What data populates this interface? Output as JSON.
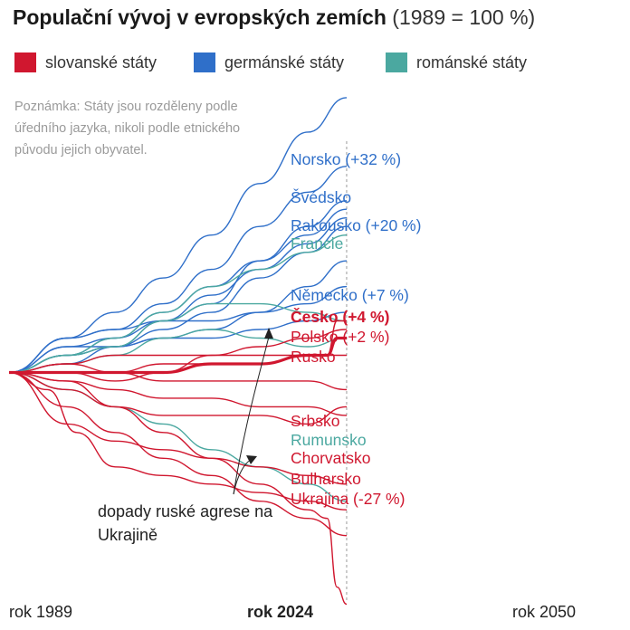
{
  "title": {
    "main": "Populační vývoj v evropských zemích",
    "sub": "(1989 = 100 %)"
  },
  "legend": [
    {
      "label": "slovanské státy",
      "color": "#d0172f"
    },
    {
      "label": "germánské státy",
      "color": "#2f6fc9"
    },
    {
      "label": "románské státy",
      "color": "#4ba8a0"
    }
  ],
  "note": "Poznámka: Státy jsou rozděleny podle úředního jazyka, nikoli podle etnického původu jejich obyvatel.",
  "axis": {
    "start": "rok 1989",
    "current": "rok 2024",
    "end": "rok 2050"
  },
  "annotation": "dopady ruské agrese na Ukrajině",
  "chart_data": {
    "type": "line",
    "x_range": [
      1989,
      2050
    ],
    "y_range": [
      70,
      136
    ],
    "highlight_year": 2024,
    "labels": [
      {
        "text": "Norsko (+32 %)",
        "group": "germanic"
      },
      {
        "text": "Švédsko",
        "group": "germanic"
      },
      {
        "text": "Rakousko (+20 %)",
        "group": "germanic"
      },
      {
        "text": "Francie",
        "group": "romance"
      },
      {
        "text": "Německo (+7 %)",
        "group": "germanic"
      },
      {
        "text": "Česko (+4 %)",
        "group": "slavic",
        "bold": true
      },
      {
        "text": "Polsko (+2 %)",
        "group": "slavic"
      },
      {
        "text": "Rusko",
        "group": "slavic"
      },
      {
        "text": "Srbsko",
        "group": "slavic"
      },
      {
        "text": "Rumunsko",
        "group": "romance"
      },
      {
        "text": "Chorvatsko",
        "group": "slavic"
      },
      {
        "text": "Bulharsko",
        "group": "slavic"
      },
      {
        "text": "Ukrajina (-27 %)",
        "group": "slavic"
      }
    ],
    "series": [
      {
        "group": "germanic",
        "points": [
          [
            1989,
            100
          ],
          [
            1995,
            104
          ],
          [
            2000,
            107
          ],
          [
            2005,
            111
          ],
          [
            2010,
            116
          ],
          [
            2015,
            122
          ],
          [
            2020,
            128
          ],
          [
            2024,
            132
          ]
        ]
      },
      {
        "group": "germanic",
        "points": [
          [
            1989,
            100
          ],
          [
            1995,
            104
          ],
          [
            2000,
            105
          ],
          [
            2005,
            108
          ],
          [
            2010,
            112
          ],
          [
            2015,
            117
          ],
          [
            2020,
            121
          ],
          [
            2024,
            124
          ]
        ]
      },
      {
        "group": "germanic",
        "points": [
          [
            1989,
            100
          ],
          [
            1995,
            103
          ],
          [
            2000,
            104
          ],
          [
            2005,
            106
          ],
          [
            2010,
            108
          ],
          [
            2015,
            113
          ],
          [
            2020,
            117
          ],
          [
            2024,
            120
          ]
        ]
      },
      {
        "group": "germanic",
        "points": [
          [
            1989,
            100
          ],
          [
            1995,
            102
          ],
          [
            2000,
            104
          ],
          [
            2005,
            107
          ],
          [
            2010,
            110
          ],
          [
            2015,
            113
          ],
          [
            2020,
            116
          ],
          [
            2024,
            119
          ]
        ]
      },
      {
        "group": "germanic",
        "points": [
          [
            1989,
            100
          ],
          [
            1995,
            103
          ],
          [
            2000,
            103
          ],
          [
            2005,
            106
          ],
          [
            2010,
            109
          ],
          [
            2015,
            112
          ],
          [
            2020,
            115
          ],
          [
            2024,
            118
          ]
        ]
      },
      {
        "group": "germanic",
        "points": [
          [
            1989,
            100
          ],
          [
            1995,
            102
          ],
          [
            2000,
            103
          ],
          [
            2005,
            105
          ],
          [
            2010,
            107
          ],
          [
            2015,
            111
          ],
          [
            2020,
            114
          ],
          [
            2024,
            117
          ]
        ]
      },
      {
        "group": "germanic",
        "points": [
          [
            1989,
            100
          ],
          [
            1995,
            104
          ],
          [
            2000,
            105
          ],
          [
            2005,
            106
          ],
          [
            2010,
            106
          ],
          [
            2015,
            107
          ],
          [
            2020,
            108
          ],
          [
            2024,
            110
          ]
        ]
      },
      {
        "group": "germanic",
        "points": [
          [
            1989,
            100
          ],
          [
            1995,
            102
          ],
          [
            2000,
            103
          ],
          [
            2005,
            104
          ],
          [
            2010,
            104
          ],
          [
            2015,
            105
          ],
          [
            2020,
            106
          ],
          [
            2024,
            107
          ]
        ]
      },
      {
        "group": "germanic",
        "points": [
          [
            1989,
            100
          ],
          [
            1995,
            101
          ],
          [
            2000,
            103
          ],
          [
            2005,
            104
          ],
          [
            2010,
            105
          ],
          [
            2015,
            107
          ],
          [
            2020,
            110
          ],
          [
            2024,
            113
          ]
        ]
      },
      {
        "group": "romance",
        "points": [
          [
            1989,
            100
          ],
          [
            1995,
            102
          ],
          [
            2000,
            104
          ],
          [
            2005,
            107
          ],
          [
            2010,
            110
          ],
          [
            2015,
            112
          ],
          [
            2020,
            114
          ],
          [
            2024,
            116
          ]
        ]
      },
      {
        "group": "romance",
        "points": [
          [
            1989,
            100
          ],
          [
            1995,
            102
          ],
          [
            2000,
            103
          ],
          [
            2005,
            106
          ],
          [
            2010,
            108
          ],
          [
            2015,
            108
          ],
          [
            2020,
            107
          ],
          [
            2024,
            106
          ]
        ]
      },
      {
        "group": "romance",
        "points": [
          [
            1989,
            100
          ],
          [
            1995,
            101
          ],
          [
            2000,
            102
          ],
          [
            2005,
            104
          ],
          [
            2010,
            105
          ],
          [
            2015,
            104
          ],
          [
            2020,
            103
          ],
          [
            2024,
            104
          ]
        ]
      },
      {
        "group": "romance",
        "points": [
          [
            1989,
            100
          ],
          [
            1995,
            98
          ],
          [
            2000,
            96
          ],
          [
            2005,
            94
          ],
          [
            2010,
            91
          ],
          [
            2015,
            89
          ],
          [
            2020,
            87
          ],
          [
            2024,
            85
          ]
        ]
      },
      {
        "group": "slavic",
        "bold": true,
        "points": [
          [
            1989,
            100
          ],
          [
            1995,
            100
          ],
          [
            2000,
            100
          ],
          [
            2005,
            100
          ],
          [
            2010,
            101
          ],
          [
            2015,
            101
          ],
          [
            2020,
            102
          ],
          [
            2022,
            102
          ],
          [
            2023,
            104
          ],
          [
            2024,
            104
          ]
        ]
      },
      {
        "group": "slavic",
        "points": [
          [
            1989,
            100
          ],
          [
            1995,
            101
          ],
          [
            2000,
            102
          ],
          [
            2005,
            102
          ],
          [
            2010,
            102
          ],
          [
            2015,
            102
          ],
          [
            2020,
            102
          ],
          [
            2024,
            102
          ]
        ]
      },
      {
        "group": "slavic",
        "points": [
          [
            1989,
            100
          ],
          [
            1995,
            101
          ],
          [
            2000,
            100
          ],
          [
            2005,
            99
          ],
          [
            2010,
            99
          ],
          [
            2015,
            99
          ],
          [
            2020,
            99
          ],
          [
            2024,
            98
          ]
        ]
      },
      {
        "group": "slavic",
        "points": [
          [
            1989,
            100
          ],
          [
            1995,
            100
          ],
          [
            2000,
            100
          ],
          [
            2005,
            101
          ],
          [
            2010,
            101
          ],
          [
            2015,
            101
          ],
          [
            2020,
            102
          ],
          [
            2022,
            102
          ],
          [
            2023,
            106
          ],
          [
            2024,
            106
          ]
        ]
      },
      {
        "group": "slavic",
        "points": [
          [
            1989,
            100
          ],
          [
            1995,
            100
          ],
          [
            2000,
            99
          ],
          [
            2005,
            100
          ],
          [
            2010,
            102
          ],
          [
            2015,
            103
          ],
          [
            2020,
            104
          ],
          [
            2024,
            105
          ]
        ]
      },
      {
        "group": "slavic",
        "points": [
          [
            1989,
            100
          ],
          [
            1995,
            98
          ],
          [
            2000,
            96
          ],
          [
            2005,
            95
          ],
          [
            2010,
            95
          ],
          [
            2015,
            95
          ],
          [
            2020,
            94
          ],
          [
            2024,
            96
          ]
        ]
      },
      {
        "group": "slavic",
        "points": [
          [
            1989,
            100
          ],
          [
            1995,
            99
          ],
          [
            2000,
            98
          ],
          [
            2005,
            97
          ],
          [
            2010,
            97
          ],
          [
            2015,
            96
          ],
          [
            2020,
            96
          ],
          [
            2024,
            95
          ]
        ]
      },
      {
        "group": "slavic",
        "points": [
          [
            1989,
            100
          ],
          [
            1995,
            94
          ],
          [
            2000,
            92
          ],
          [
            2005,
            91
          ],
          [
            2010,
            90
          ],
          [
            2015,
            89
          ],
          [
            2020,
            88
          ],
          [
            2024,
            87
          ]
        ]
      },
      {
        "group": "slavic",
        "points": [
          [
            1989,
            100
          ],
          [
            1993,
            98
          ],
          [
            1996,
            93
          ],
          [
            2000,
            89
          ],
          [
            2005,
            88
          ],
          [
            2010,
            87
          ],
          [
            2015,
            86
          ],
          [
            2020,
            85
          ],
          [
            2024,
            84
          ]
        ]
      },
      {
        "group": "slavic",
        "points": [
          [
            1989,
            100
          ],
          [
            1995,
            96
          ],
          [
            2000,
            93
          ],
          [
            2005,
            90
          ],
          [
            2010,
            88
          ],
          [
            2015,
            85
          ],
          [
            2020,
            83
          ],
          [
            2024,
            81
          ]
        ]
      },
      {
        "group": "slavic",
        "points": [
          [
            1989,
            100
          ],
          [
            1995,
            99
          ],
          [
            2000,
            96
          ],
          [
            2005,
            93
          ],
          [
            2010,
            90
          ],
          [
            2015,
            87
          ],
          [
            2020,
            84
          ],
          [
            2022,
            83
          ],
          [
            2023,
            75
          ],
          [
            2024,
            73
          ]
        ]
      }
    ]
  }
}
